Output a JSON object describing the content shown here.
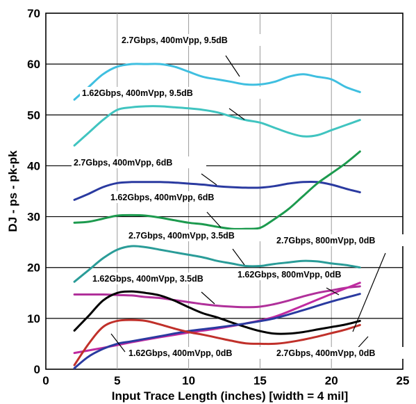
{
  "chart_data": {
    "type": "line",
    "title": "",
    "xlabel": "Input Trace Length (inches) [width = 4 mil]",
    "ylabel": "DJ - ps - pk-pk",
    "xlim": [
      0,
      25
    ],
    "ylim": [
      0,
      70
    ],
    "xticks": [
      0,
      5,
      10,
      15,
      20,
      25
    ],
    "yticks": [
      0,
      10,
      20,
      30,
      40,
      50,
      60,
      70
    ],
    "grid": true,
    "legend": "inline labels",
    "series": [
      {
        "name": "2.7Gbps, 400mVpp, 9.5dB",
        "color": "#3fbfe0",
        "points": [
          [
            2,
            53
          ],
          [
            3,
            55.5
          ],
          [
            4,
            58
          ],
          [
            5,
            59.5
          ],
          [
            6,
            60
          ],
          [
            7,
            60
          ],
          [
            8,
            60
          ],
          [
            9,
            59.5
          ],
          [
            10,
            58.5
          ],
          [
            11,
            57.5
          ],
          [
            12,
            57
          ],
          [
            13,
            56.5
          ],
          [
            14,
            56
          ],
          [
            15,
            56
          ],
          [
            16,
            56.5
          ],
          [
            17,
            57.5
          ],
          [
            18,
            58
          ],
          [
            19,
            57.5
          ],
          [
            20,
            57
          ],
          [
            21,
            55.5
          ],
          [
            22,
            54.5
          ]
        ]
      },
      {
        "name": "1.62Gbps, 400mVpp, 9.5dB",
        "color": "#40c4c0",
        "points": [
          [
            2,
            44
          ],
          [
            3,
            46.5
          ],
          [
            4,
            49
          ],
          [
            5,
            51
          ],
          [
            6,
            51.5
          ],
          [
            7,
            51.7
          ],
          [
            8,
            51.7
          ],
          [
            9,
            51.5
          ],
          [
            10,
            51.3
          ],
          [
            11,
            51
          ],
          [
            12,
            50.5
          ],
          [
            13,
            49.7
          ],
          [
            14,
            49
          ],
          [
            15,
            48.5
          ],
          [
            16,
            47.5
          ],
          [
            17,
            46.5
          ],
          [
            18,
            45.8
          ],
          [
            19,
            46
          ],
          [
            20,
            47
          ],
          [
            21,
            48
          ],
          [
            22,
            49
          ]
        ]
      },
      {
        "name": "2.7Gbps, 400mVpp, 6dB",
        "color": "#2a3aa0",
        "points": [
          [
            2,
            33.3
          ],
          [
            3,
            34.5
          ],
          [
            4,
            35.8
          ],
          [
            5,
            36.6
          ],
          [
            6,
            36.8
          ],
          [
            7,
            36.8
          ],
          [
            8,
            36.8
          ],
          [
            9,
            36.7
          ],
          [
            10,
            36.5
          ],
          [
            11,
            36.3
          ],
          [
            12,
            36
          ],
          [
            13,
            35.8
          ],
          [
            14,
            35.7
          ],
          [
            15,
            35.7
          ],
          [
            16,
            36
          ],
          [
            17,
            36.5
          ],
          [
            18,
            36.8
          ],
          [
            19,
            36.8
          ],
          [
            20,
            36.3
          ],
          [
            21,
            35.5
          ],
          [
            22,
            34.8
          ]
        ]
      },
      {
        "name": "1.62Gbps, 400mVpp, 6dB",
        "color": "#1c9a4e",
        "points": [
          [
            2,
            28.8
          ],
          [
            3,
            29
          ],
          [
            4,
            29.6
          ],
          [
            5,
            30.2
          ],
          [
            6,
            30.3
          ],
          [
            7,
            30.2
          ],
          [
            8,
            29.8
          ],
          [
            9,
            29.3
          ],
          [
            10,
            28.8
          ],
          [
            11,
            28.5
          ],
          [
            12,
            28
          ],
          [
            13,
            27.6
          ],
          [
            14,
            27.6
          ],
          [
            15,
            27.8
          ],
          [
            16,
            29.5
          ],
          [
            17,
            31.5
          ],
          [
            18,
            34
          ],
          [
            19,
            36.5
          ],
          [
            20,
            38.5
          ],
          [
            21,
            40.5
          ],
          [
            22,
            42.8
          ]
        ]
      },
      {
        "name": "2.7Gbps, 400mVpp, 3.5dB",
        "color": "#2a9c98",
        "points": [
          [
            2,
            17.2
          ],
          [
            3,
            19.5
          ],
          [
            4,
            21.8
          ],
          [
            5,
            23.5
          ],
          [
            6,
            24.2
          ],
          [
            7,
            24
          ],
          [
            8,
            23.5
          ],
          [
            9,
            23
          ],
          [
            10,
            22.5
          ],
          [
            11,
            22
          ],
          [
            12,
            21.3
          ],
          [
            13,
            20.8
          ],
          [
            14,
            20.3
          ],
          [
            15,
            20.3
          ],
          [
            16,
            20.7
          ],
          [
            17,
            21
          ],
          [
            18,
            21.3
          ],
          [
            19,
            21.2
          ],
          [
            20,
            20.8
          ],
          [
            21,
            20.5
          ],
          [
            22,
            20
          ]
        ]
      },
      {
        "name": "1.62Gbps, 400mVpp, 3.5dB",
        "color": "#b0309a",
        "points": [
          [
            2,
            14.7
          ],
          [
            3,
            14.7
          ],
          [
            4,
            14.7
          ],
          [
            5,
            14.6
          ],
          [
            6,
            14.5
          ],
          [
            7,
            14.2
          ],
          [
            8,
            14
          ],
          [
            9,
            13.6
          ],
          [
            10,
            13.2
          ],
          [
            11,
            12.8
          ],
          [
            12,
            12.5
          ],
          [
            13,
            12.3
          ],
          [
            14,
            12.2
          ],
          [
            15,
            12.3
          ],
          [
            16,
            12.8
          ],
          [
            17,
            13.5
          ],
          [
            18,
            14.3
          ],
          [
            19,
            15
          ],
          [
            20,
            15.5
          ],
          [
            21,
            16
          ],
          [
            22,
            16.3
          ]
        ]
      },
      {
        "name": "1.62Gbps, 800mVpp, 0dB",
        "color": "#c02aa0",
        "points": [
          [
            2,
            3.2
          ],
          [
            4,
            4.2
          ],
          [
            6,
            5.3
          ],
          [
            8,
            6.3
          ],
          [
            10,
            7.2
          ],
          [
            12,
            8
          ],
          [
            14,
            9
          ],
          [
            16,
            10.3
          ],
          [
            18,
            12.5
          ],
          [
            20,
            14.8
          ],
          [
            22,
            17
          ]
        ]
      },
      {
        "name": "2.7Gbps, 800mVpp, 0dB",
        "color": "#000000",
        "points": [
          [
            2,
            7.6
          ],
          [
            3,
            10.5
          ],
          [
            4,
            13.5
          ],
          [
            5,
            15
          ],
          [
            6,
            15.3
          ],
          [
            7,
            15
          ],
          [
            8,
            14.5
          ],
          [
            9,
            13.5
          ],
          [
            10,
            12.2
          ],
          [
            11,
            11
          ],
          [
            12,
            10.2
          ],
          [
            13,
            9.2
          ],
          [
            14,
            8.3
          ],
          [
            15,
            7.5
          ],
          [
            16,
            7
          ],
          [
            17,
            7
          ],
          [
            18,
            7.3
          ],
          [
            19,
            7.8
          ],
          [
            20,
            8.3
          ],
          [
            21,
            8.8
          ],
          [
            22,
            9.5
          ]
        ]
      },
      {
        "name": "1.62Gbps, 400mVpp, 0dB",
        "color": "#2a3aa0",
        "points": [
          [
            2,
            0.2
          ],
          [
            3,
            2.5
          ],
          [
            4,
            4
          ],
          [
            5,
            5
          ],
          [
            6,
            5.5
          ],
          [
            8,
            6.5
          ],
          [
            10,
            7.5
          ],
          [
            12,
            8.2
          ],
          [
            14,
            9
          ],
          [
            16,
            10
          ],
          [
            18,
            11.6
          ],
          [
            20,
            13.3
          ],
          [
            22,
            14.8
          ]
        ]
      },
      {
        "name": "2.7Gbps, 400mVpp, 0dB",
        "color": "#c0302a",
        "points": [
          [
            2,
            0.8
          ],
          [
            3,
            5
          ],
          [
            4,
            8.3
          ],
          [
            5,
            9.5
          ],
          [
            6,
            9.7
          ],
          [
            7,
            9.5
          ],
          [
            8,
            8.8
          ],
          [
            9,
            8
          ],
          [
            10,
            7.3
          ],
          [
            11,
            6.8
          ],
          [
            12,
            6.2
          ],
          [
            13,
            5.6
          ],
          [
            14,
            5.1
          ],
          [
            15,
            5
          ],
          [
            16,
            5
          ],
          [
            17,
            5.3
          ],
          [
            18,
            5.8
          ],
          [
            19,
            6.4
          ],
          [
            20,
            7.1
          ],
          [
            21,
            7.8
          ],
          [
            22,
            8.7
          ]
        ]
      }
    ],
    "annotations": [
      {
        "text": "2.7Gbps, 400mVpp, 9.5dB"
      },
      {
        "text": "1.62Gbps, 400mVpp, 9.5dB"
      },
      {
        "text": "2.7Gbps, 400mVpp, 6dB"
      },
      {
        "text": "1.62Gbps, 400mVpp, 6dB"
      },
      {
        "text": "2.7Gbps, 400mVpp, 3.5dB"
      },
      {
        "text": "2.7Gbps, 800mVpp, 0dB"
      },
      {
        "text": "1.62Gbps, 400mVpp, 3.5dB"
      },
      {
        "text": "1.62Gbps, 800mVpp, 0dB"
      },
      {
        "text": "1.62Gbps, 400mVpp, 0dB"
      },
      {
        "text": "2.7Gbps, 400mVpp, 0dB"
      }
    ]
  }
}
